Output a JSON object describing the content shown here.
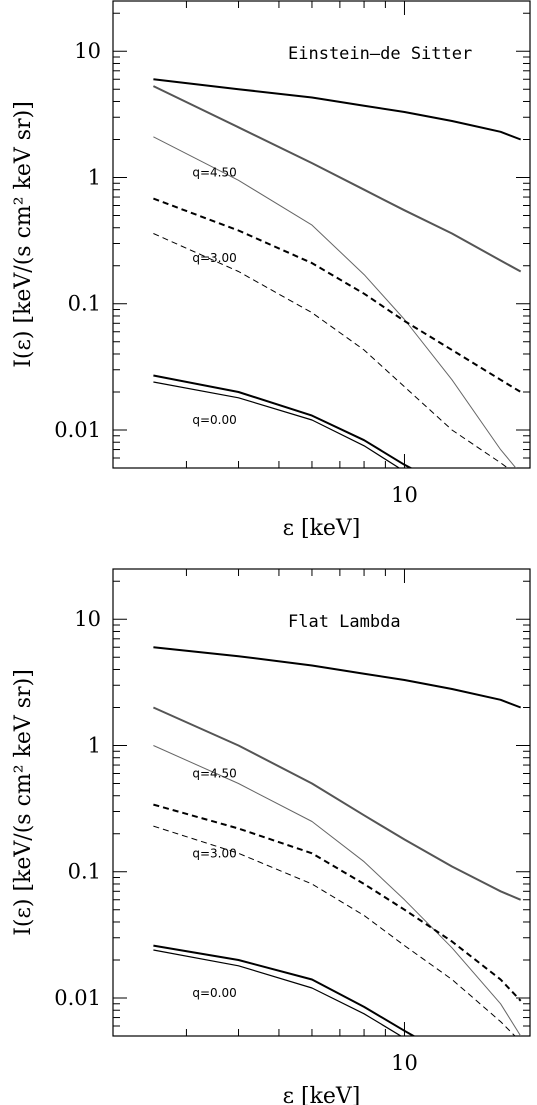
{
  "chart_data": [
    {
      "type": "line",
      "title": "Einstein–de Sitter",
      "xlabel": "ε  [keV]",
      "ylabel": "I(ε)   [keV/(s cm² keV sr)]",
      "xscale": "log",
      "yscale": "log",
      "xlim": [
        2,
        20
      ],
      "ylim": [
        0.005,
        25
      ],
      "xticks": [
        {
          "value": 10,
          "label": "10"
        }
      ],
      "yticks": [
        {
          "value": 10,
          "label": "10"
        },
        {
          "value": 1,
          "label": "1"
        },
        {
          "value": 0.1,
          "label": "0.1"
        },
        {
          "value": 0.01,
          "label": "0.01"
        }
      ],
      "annotations": [
        {
          "text": "q=4.50",
          "x": 3.1,
          "y": 1.1
        },
        {
          "text": "q=3.00",
          "x": 3.1,
          "y": 0.23
        },
        {
          "text": "q=0.00",
          "x": 3.1,
          "y": 0.012
        }
      ],
      "series": [
        {
          "style": "thick-solid",
          "color": "#000000",
          "x": [
            2.5,
            4,
            6,
            8,
            10,
            13,
            17,
            19
          ],
          "y": [
            6.0,
            5.0,
            4.3,
            3.7,
            3.3,
            2.8,
            2.3,
            2.0
          ]
        },
        {
          "style": "gray-thick",
          "color": "#555555",
          "x": [
            2.5,
            4,
            6,
            8,
            10,
            13,
            17,
            19
          ],
          "y": [
            5.3,
            2.5,
            1.3,
            0.8,
            0.55,
            0.36,
            0.22,
            0.18
          ]
        },
        {
          "style": "gray-thin",
          "color": "#666666",
          "x": [
            2.5,
            4,
            6,
            8,
            10,
            13,
            17,
            19
          ],
          "y": [
            2.1,
            0.95,
            0.42,
            0.17,
            0.075,
            0.025,
            0.007,
            0.0045
          ]
        },
        {
          "style": "thick-dashed",
          "color": "#000000",
          "x": [
            2.5,
            4,
            6,
            8,
            10,
            13,
            17,
            19
          ],
          "y": [
            0.68,
            0.38,
            0.21,
            0.12,
            0.073,
            0.043,
            0.025,
            0.02
          ]
        },
        {
          "style": "thin-dashed",
          "color": "#000000",
          "x": [
            2.5,
            4,
            6,
            8,
            10,
            13,
            17,
            19
          ],
          "y": [
            0.36,
            0.18,
            0.085,
            0.043,
            0.022,
            0.01,
            0.0055,
            0.0042
          ]
        },
        {
          "style": "thick-solid",
          "color": "#000000",
          "x": [
            2.5,
            4,
            6,
            8,
            10,
            11
          ],
          "y": [
            0.027,
            0.02,
            0.013,
            0.0083,
            0.0053,
            0.0045
          ]
        },
        {
          "style": "thin-solid",
          "color": "#000000",
          "x": [
            2.5,
            4,
            6,
            8,
            10,
            11
          ],
          "y": [
            0.024,
            0.018,
            0.012,
            0.0075,
            0.0047,
            0.004
          ]
        }
      ]
    },
    {
      "type": "line",
      "title": "Flat Lambda",
      "xlabel": "ε  [keV]",
      "ylabel": "I(ε)   [keV/(s cm² keV sr)]",
      "xscale": "log",
      "yscale": "log",
      "xlim": [
        2,
        20
      ],
      "ylim": [
        0.005,
        25
      ],
      "xticks": [
        {
          "value": 10,
          "label": "10"
        }
      ],
      "yticks": [
        {
          "value": 10,
          "label": "10"
        },
        {
          "value": 1,
          "label": "1"
        },
        {
          "value": 0.1,
          "label": "0.1"
        },
        {
          "value": 0.01,
          "label": "0.01"
        }
      ],
      "annotations": [
        {
          "text": "q=4.50",
          "x": 3.1,
          "y": 0.6
        },
        {
          "text": "q=3.00",
          "x": 3.1,
          "y": 0.14
        },
        {
          "text": "q=0.00",
          "x": 3.1,
          "y": 0.011
        }
      ],
      "series": [
        {
          "style": "thick-solid",
          "color": "#000000",
          "x": [
            2.5,
            4,
            6,
            8,
            10,
            13,
            17,
            19
          ],
          "y": [
            6.0,
            5.1,
            4.3,
            3.7,
            3.3,
            2.8,
            2.3,
            2.0
          ]
        },
        {
          "style": "gray-thick",
          "color": "#555555",
          "x": [
            2.5,
            4,
            6,
            8,
            10,
            13,
            17,
            19
          ],
          "y": [
            2.0,
            1.0,
            0.5,
            0.28,
            0.18,
            0.11,
            0.07,
            0.06
          ]
        },
        {
          "style": "gray-thin",
          "color": "#666666",
          "x": [
            2.5,
            4,
            6,
            8,
            10,
            13,
            17,
            19
          ],
          "y": [
            1.0,
            0.5,
            0.25,
            0.12,
            0.06,
            0.025,
            0.009,
            0.005
          ]
        },
        {
          "style": "thick-dashed",
          "color": "#000000",
          "x": [
            2.5,
            4,
            6,
            8,
            10,
            13,
            17,
            19
          ],
          "y": [
            0.34,
            0.22,
            0.14,
            0.08,
            0.05,
            0.028,
            0.014,
            0.0095
          ]
        },
        {
          "style": "thin-dashed",
          "color": "#000000",
          "x": [
            2.5,
            4,
            6,
            8,
            10,
            13,
            17,
            19
          ],
          "y": [
            0.23,
            0.14,
            0.08,
            0.045,
            0.026,
            0.014,
            0.0065,
            0.0045
          ]
        },
        {
          "style": "thick-solid",
          "color": "#000000",
          "x": [
            2.5,
            4,
            6,
            8,
            10,
            11
          ],
          "y": [
            0.026,
            0.02,
            0.014,
            0.0085,
            0.0055,
            0.0046
          ]
        },
        {
          "style": "thin-solid",
          "color": "#000000",
          "x": [
            2.5,
            4,
            6,
            8,
            10,
            11
          ],
          "y": [
            0.024,
            0.018,
            0.012,
            0.0075,
            0.0048,
            0.004
          ]
        }
      ]
    }
  ]
}
